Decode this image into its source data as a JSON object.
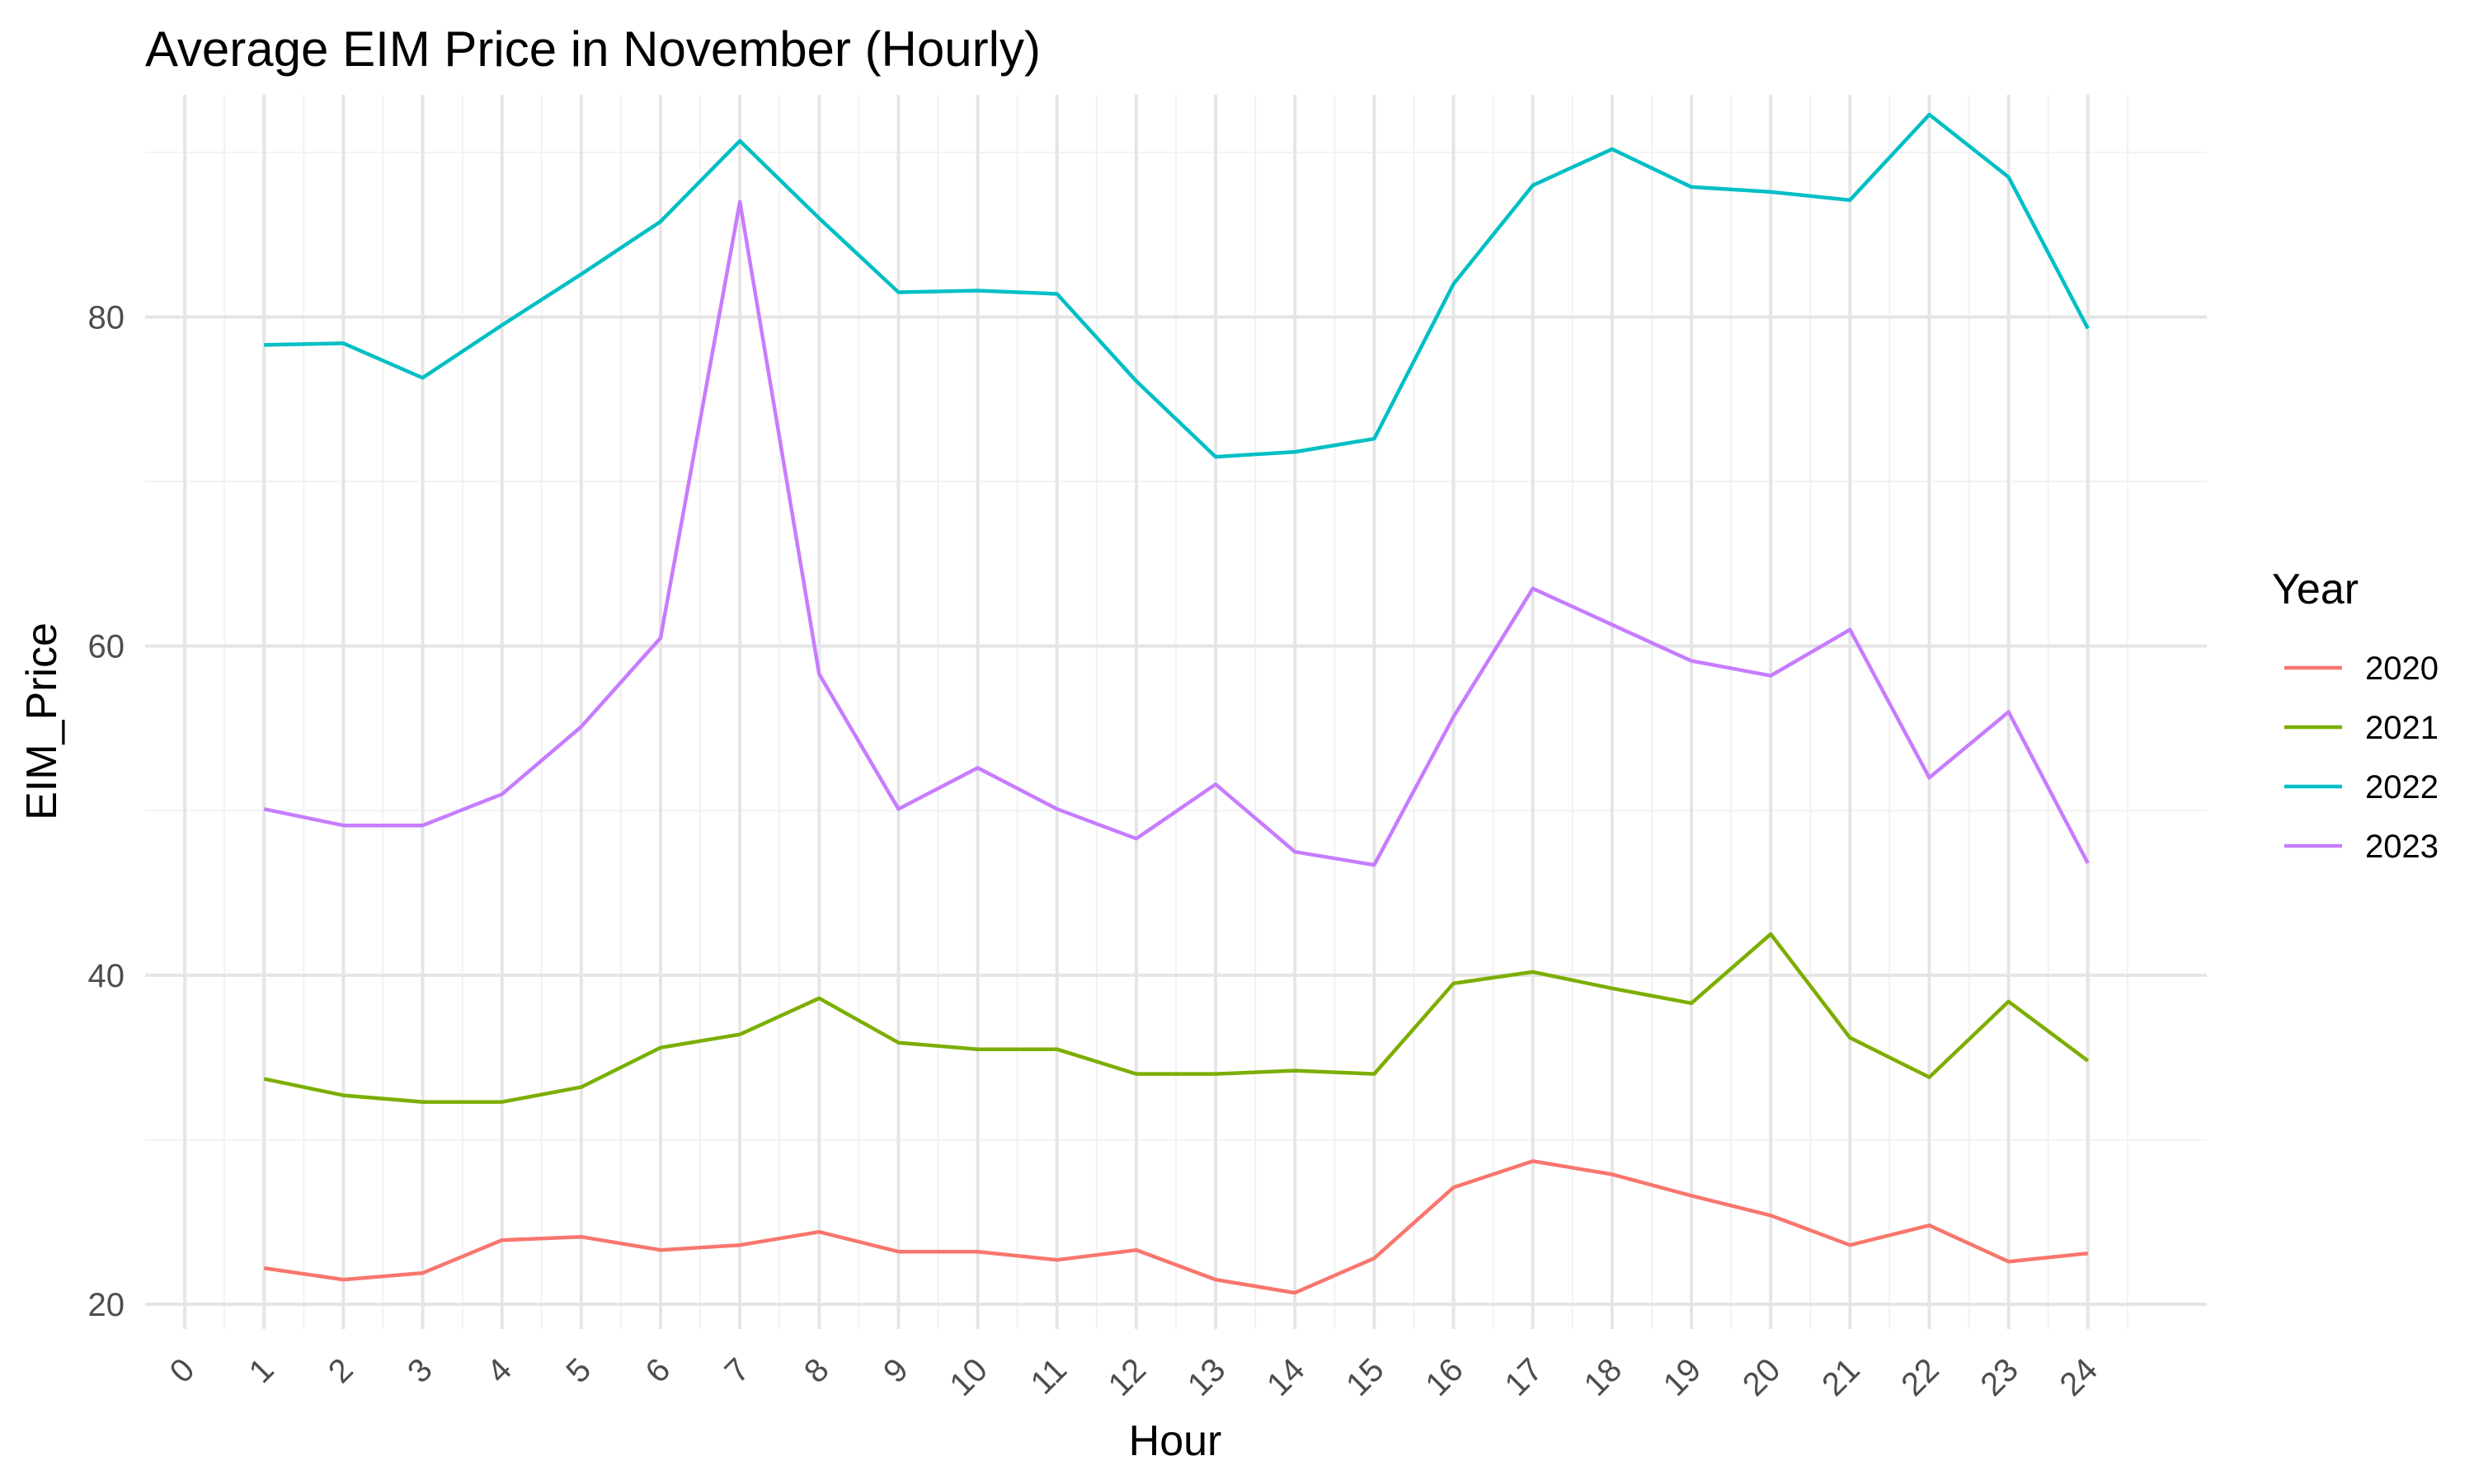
{
  "chart_data": {
    "type": "line",
    "title": "Average EIM Price in November (Hourly)",
    "xlabel": "Hour",
    "ylabel": "EIM_Price",
    "xlim": [
      -0.5,
      25.5
    ],
    "ylim": [
      18.5,
      93.5
    ],
    "x_ticks": [
      0,
      1,
      2,
      3,
      4,
      5,
      6,
      7,
      8,
      9,
      10,
      11,
      12,
      13,
      14,
      15,
      16,
      17,
      18,
      19,
      20,
      21,
      22,
      23,
      24
    ],
    "x_tick_labels": [
      "0",
      "1",
      "2",
      "3",
      "4",
      "5",
      "6",
      "7",
      "8",
      "9",
      "10",
      "11",
      "12",
      "13",
      "14",
      "15",
      "16",
      "17",
      "18",
      "19",
      "20",
      "21",
      "22",
      "23",
      "24"
    ],
    "y_ticks": [
      20,
      40,
      60,
      80
    ],
    "y_tick_labels": [
      "20",
      "40",
      "60",
      "80"
    ],
    "y_minor_ticks": [
      30,
      50,
      70,
      90
    ],
    "grid": true,
    "legend_title": "Year",
    "legend_position": "right",
    "x": [
      1,
      2,
      3,
      4,
      5,
      6,
      7,
      8,
      9,
      10,
      11,
      12,
      13,
      14,
      15,
      16,
      17,
      18,
      19,
      20,
      21,
      22,
      23,
      24
    ],
    "series": [
      {
        "name": "2020",
        "color": "#F8766D",
        "values": [
          22.2,
          21.5,
          21.9,
          23.9,
          24.1,
          23.3,
          23.6,
          24.4,
          23.2,
          23.2,
          22.7,
          23.3,
          21.5,
          20.7,
          22.8,
          27.1,
          28.7,
          27.9,
          26.6,
          25.4,
          23.6,
          24.8,
          22.6,
          23.1
        ]
      },
      {
        "name": "2021",
        "color": "#7CAE00",
        "values": [
          33.7,
          32.7,
          32.3,
          32.3,
          33.2,
          35.6,
          36.4,
          38.6,
          35.9,
          35.5,
          35.5,
          34.0,
          34.0,
          34.2,
          34.0,
          39.5,
          40.2,
          39.2,
          38.3,
          42.5,
          36.2,
          33.8,
          38.4,
          34.8
        ]
      },
      {
        "name": "2022",
        "color": "#00BFC4",
        "values": [
          78.3,
          78.4,
          76.3,
          79.5,
          82.6,
          85.8,
          90.7,
          86.0,
          81.5,
          81.6,
          81.4,
          76.1,
          71.5,
          71.8,
          72.6,
          82.0,
          88.0,
          90.2,
          87.9,
          87.6,
          87.1,
          92.3,
          88.5,
          79.3
        ]
      },
      {
        "name": "2023",
        "color": "#C77CFF",
        "values": [
          50.1,
          49.1,
          49.1,
          51.0,
          55.1,
          60.5,
          87.0,
          58.3,
          50.1,
          52.6,
          50.1,
          48.3,
          51.6,
          47.5,
          46.7,
          55.7,
          63.5,
          61.3,
          59.1,
          58.2,
          61.0,
          52.0,
          56.0,
          46.8
        ]
      }
    ]
  }
}
